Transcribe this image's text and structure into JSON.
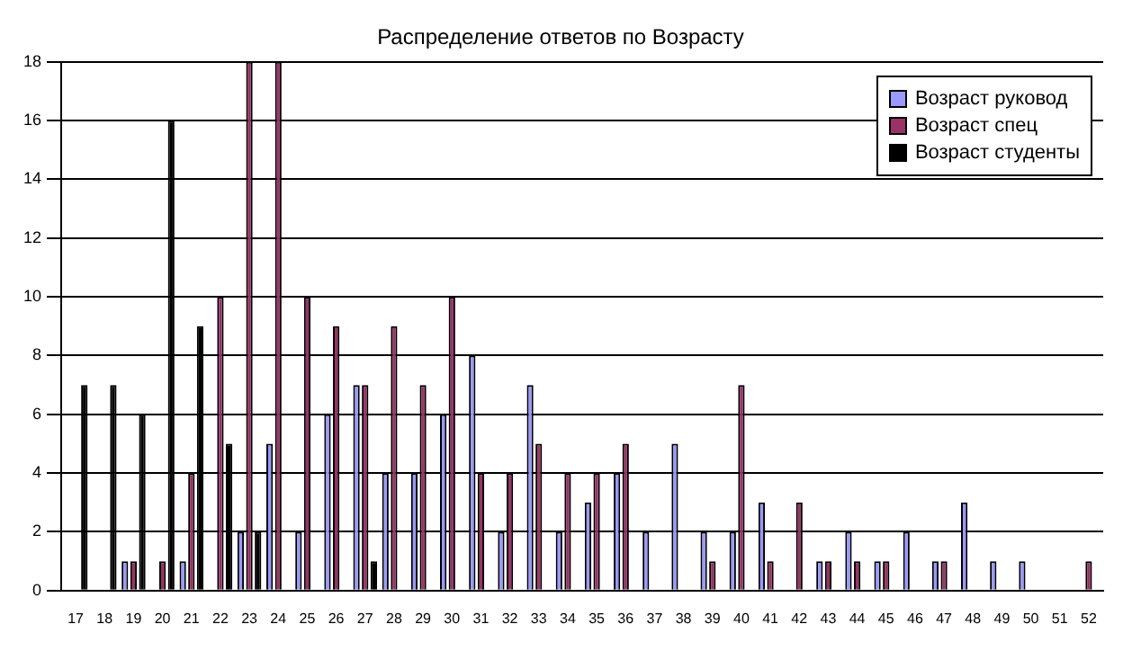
{
  "chart_data": {
    "type": "bar",
    "title": "Распределение ответов по Возрасту",
    "categories": [
      "17",
      "18",
      "19",
      "20",
      "21",
      "22",
      "23",
      "24",
      "25",
      "26",
      "27",
      "28",
      "29",
      "30",
      "31",
      "32",
      "33",
      "34",
      "35",
      "36",
      "37",
      "38",
      "39",
      "40",
      "41",
      "42",
      "43",
      "44",
      "45",
      "46",
      "47",
      "48",
      "49",
      "50",
      "51",
      "52"
    ],
    "series": [
      {
        "name": "Возраст руковод",
        "color": "#9999ff",
        "values": [
          null,
          null,
          1,
          null,
          1,
          null,
          2,
          5,
          2,
          6,
          7,
          4,
          4,
          6,
          8,
          2,
          7,
          2,
          3,
          4,
          2,
          5,
          2,
          2,
          3,
          null,
          1,
          2,
          1,
          2,
          1,
          3,
          1,
          1,
          null,
          null
        ]
      },
      {
        "name": "Возраст спец",
        "color": "#993366",
        "values": [
          null,
          null,
          1,
          1,
          4,
          10,
          18,
          18,
          10,
          9,
          7,
          9,
          7,
          10,
          4,
          4,
          5,
          4,
          4,
          5,
          null,
          null,
          1,
          7,
          1,
          3,
          1,
          1,
          1,
          null,
          1,
          null,
          null,
          null,
          null,
          1
        ]
      },
      {
        "name": "Возраст студенты",
        "color": "#000000",
        "values": [
          7,
          7,
          6,
          16,
          9,
          5,
          2,
          null,
          null,
          null,
          1,
          null,
          null,
          null,
          null,
          null,
          null,
          null,
          null,
          null,
          null,
          null,
          null,
          null,
          null,
          null,
          null,
          null,
          null,
          null,
          null,
          null,
          null,
          null,
          null,
          null
        ]
      }
    ],
    "ylim": [
      0,
      18
    ],
    "yticks": [
      0,
      2,
      4,
      6,
      8,
      10,
      12,
      14,
      16,
      18
    ],
    "grid": "y",
    "legend": "top right"
  }
}
